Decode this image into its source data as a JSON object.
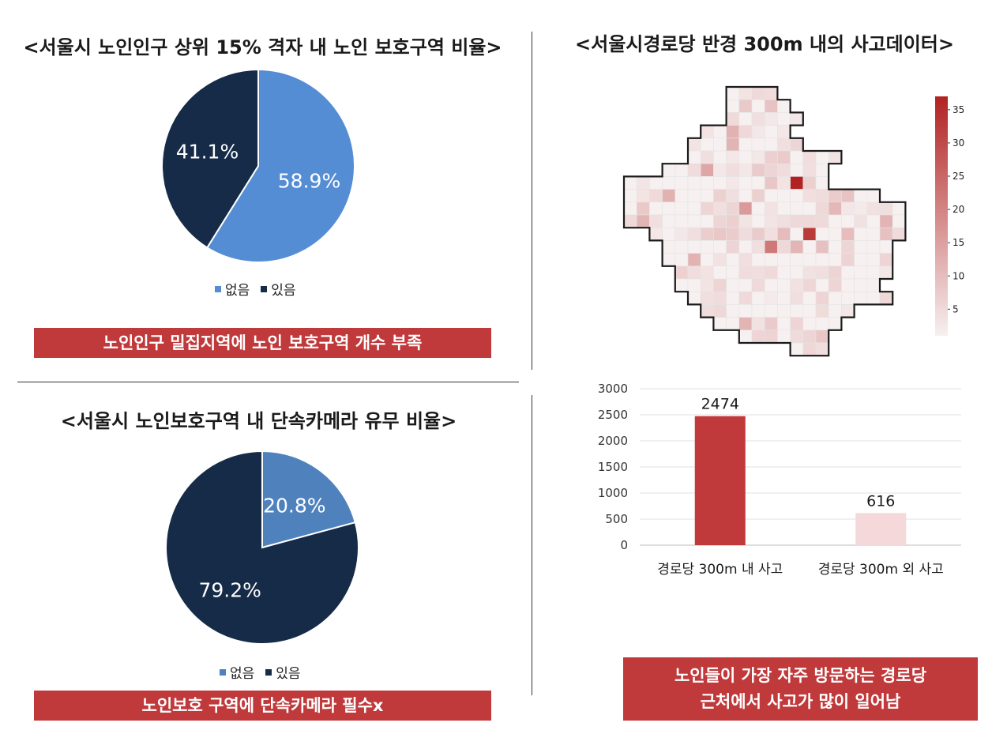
{
  "colors": {
    "pie_blue": "#548dd4",
    "pie_blue2": "#4f81bd",
    "pie_navy": "#162b47",
    "banner_red": "#c0393b",
    "bar_red": "#c0393b",
    "bar_pink": "#f5d8d9"
  },
  "panels": {
    "top_left": {
      "title": "<서울시 노인인구 상위 15% 격자 내 노인 보호구역 비율>",
      "banner": "노인인구 밀집지역에 노인 보호구역 개수 부족"
    },
    "bottom_left": {
      "title": "<서울시 노인보호구역 내 단속카메라 유무 비율>",
      "banner": "노인보호 구역에 단속카메라 필수x"
    },
    "top_right": {
      "title": "<서울시경로당 반경 300m 내의 사고데이터>"
    },
    "bottom_right": {
      "banner_line1": "노인들이 가장 자주 방문하는 경로당",
      "banner_line2": "근처에서 사고가 많이 일어남"
    }
  },
  "chart_data": [
    {
      "type": "pie",
      "labels": [
        "없음",
        "있음"
      ],
      "values": [
        58.9,
        41.1
      ],
      "value_labels": [
        "58.9%",
        "41.1%"
      ],
      "colors": [
        "#548dd4",
        "#162b47"
      ],
      "legend": "bottom"
    },
    {
      "type": "pie",
      "labels": [
        "없음",
        "있음"
      ],
      "values": [
        20.8,
        79.2
      ],
      "value_labels": [
        "20.8%",
        "79.2%"
      ],
      "colors": [
        "#4f81bd",
        "#162b47"
      ],
      "legend": "bottom"
    },
    {
      "type": "heatmap",
      "colorbar_ticks": [
        "35",
        "30",
        "25",
        "20",
        "15",
        "10",
        "5"
      ],
      "colorbar_range": [
        1,
        37
      ],
      "colors": [
        "#f7f0f0",
        "#b22222"
      ],
      "grid": true
    },
    {
      "type": "bar",
      "categories": [
        "경로당 300m 내 사고",
        "경로당 300m 외 사고"
      ],
      "values": [
        2474,
        616
      ],
      "value_labels": [
        "2474",
        "616"
      ],
      "bar_colors": [
        "#c0393b",
        "#f5d8d9"
      ],
      "ylim": [
        0,
        3000
      ],
      "yticks": [
        "0",
        "500",
        "1000",
        "1500",
        "2000",
        "2500",
        "3000"
      ],
      "grid": true
    }
  ]
}
